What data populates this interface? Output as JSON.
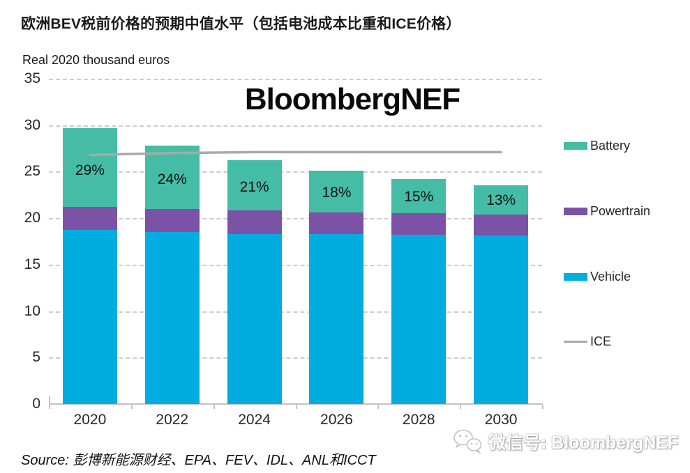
{
  "title": "欧洲BEV税前价格的预期中值水平（包括电池成本比重和ICE价格）",
  "subtitle": "Real 2020 thousand  euros",
  "center_watermark": "BloombergNEF",
  "source": "Source: 彭博新能源财经、EPA、FEV、IDL、ANL和ICCT",
  "wechat_watermark": "微信号: BloombergNEF",
  "legend": {
    "position": "right",
    "items": [
      {
        "label": "Battery",
        "color": "#45BCA5",
        "type": "swatch"
      },
      {
        "label": "Powertrain",
        "color": "#7B52A5",
        "type": "swatch"
      },
      {
        "label": "Vehicle",
        "color": "#00ACE0",
        "type": "swatch"
      },
      {
        "label": "ICE",
        "color": "#A9A9A9",
        "type": "line"
      }
    ]
  },
  "chart_data": {
    "type": "bar",
    "stacked": true,
    "title": "欧洲BEV税前价格的预期中值水平（包括电池成本比重和ICE价格）",
    "ylabel": "Real 2020 thousand euros",
    "xlabel": "",
    "categories": [
      "2020",
      "2022",
      "2024",
      "2026",
      "2028",
      "2030"
    ],
    "series": [
      {
        "name": "Vehicle",
        "color": "#00ACE0",
        "values": [
          18.7,
          18.5,
          18.3,
          18.3,
          18.2,
          18.1
        ]
      },
      {
        "name": "Powertrain",
        "color": "#7B52A5",
        "values": [
          2.5,
          2.5,
          2.5,
          2.3,
          2.3,
          2.3
        ]
      },
      {
        "name": "Battery",
        "color": "#45BCA5",
        "values": [
          8.5,
          6.8,
          5.4,
          4.5,
          3.7,
          3.1
        ]
      }
    ],
    "line_series": {
      "name": "ICE",
      "color": "#A9A9A9",
      "values": [
        26.8,
        27.0,
        27.1,
        27.1,
        27.1,
        27.1
      ]
    },
    "bar_labels": [
      "29%",
      "24%",
      "21%",
      "18%",
      "15%",
      "13%"
    ],
    "totals": [
      29.7,
      27.8,
      26.2,
      25.1,
      24.2,
      23.5
    ],
    "ylim": [
      0,
      35
    ],
    "ytick_step": 5,
    "grid": "horizontal-dashed",
    "legend_position": "right"
  }
}
